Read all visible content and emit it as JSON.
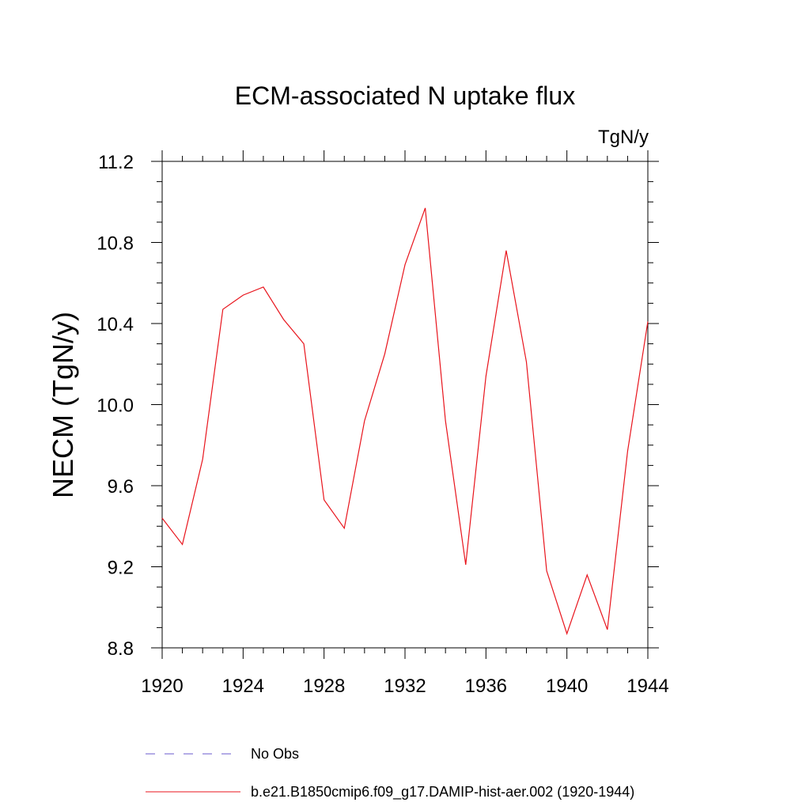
{
  "chart_data": {
    "type": "line",
    "title": "ECM-associated N uptake flux",
    "units_label": "TgN/y",
    "ylabel": "NECM  (TgN/y)",
    "xlabel": "",
    "xlim": [
      1920,
      1944
    ],
    "ylim": [
      8.8,
      11.2
    ],
    "x_ticks": [
      1920,
      1924,
      1928,
      1932,
      1936,
      1940,
      1944
    ],
    "x_tick_labels": [
      "1920",
      "1924",
      "1928",
      "1932",
      "1936",
      "1940",
      "1944"
    ],
    "y_ticks": [
      8.8,
      9.2,
      9.6,
      10.0,
      10.4,
      10.8,
      11.2
    ],
    "y_tick_labels": [
      "8.8",
      "9.2",
      "9.6",
      "10.0",
      "10.4",
      "10.8",
      "11.2"
    ],
    "grid": false,
    "legend_position": "bottom",
    "series": [
      {
        "name": "No Obs",
        "color": "#6a5acd",
        "dash": "dashed",
        "x": [],
        "values": []
      },
      {
        "name": "b.e21.B1850cmip6.f09_g17.DAMIP-hist-aer.002 (1920-1944)",
        "color": "#e8141c",
        "dash": "solid",
        "x": [
          1920,
          1921,
          1922,
          1923,
          1924,
          1925,
          1926,
          1927,
          1928,
          1929,
          1930,
          1931,
          1932,
          1933,
          1934,
          1935,
          1936,
          1937,
          1938,
          1939,
          1940,
          1941,
          1942,
          1943,
          1944
        ],
        "values": [
          9.44,
          9.31,
          9.73,
          10.47,
          10.54,
          10.58,
          10.42,
          10.3,
          9.53,
          9.39,
          9.92,
          10.25,
          10.69,
          10.97,
          9.92,
          9.21,
          10.14,
          10.76,
          10.21,
          9.18,
          8.87,
          9.16,
          8.89,
          9.77,
          10.41
        ]
      }
    ]
  }
}
